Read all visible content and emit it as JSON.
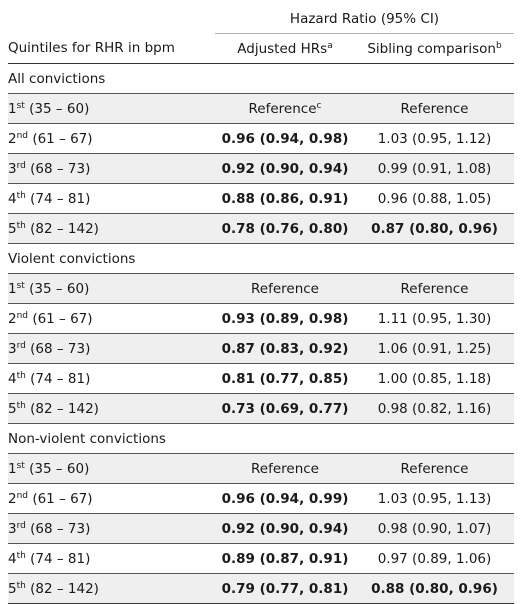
{
  "header": {
    "span_label": "Hazard Ratio (95% CI)",
    "quintile_label": "Quintiles for RHR in bpm",
    "adjusted_label": "Adjusted HRs",
    "adjusted_sup": "a",
    "sibling_label": "Sibling comparison",
    "sibling_sup": "b"
  },
  "sections": [
    {
      "title": "All convictions",
      "rows": [
        {
          "ord": "1",
          "suffix": "st",
          "range": "(35 – 60)",
          "adj": "Reference",
          "adj_sup": "c",
          "adj_bold": false,
          "sib": "Reference",
          "sib_bold": false
        },
        {
          "ord": "2",
          "suffix": "nd",
          "range": "(61 – 67)",
          "adj": "0.96 (0.94, 0.98)",
          "adj_sup": "",
          "adj_bold": true,
          "sib": "1.03 (0.95, 1.12)",
          "sib_bold": false
        },
        {
          "ord": "3",
          "suffix": "rd",
          "range": "(68 – 73)",
          "adj": "0.92 (0.90, 0.94)",
          "adj_sup": "",
          "adj_bold": true,
          "sib": "0.99 (0.91, 1.08)",
          "sib_bold": false
        },
        {
          "ord": "4",
          "suffix": "th",
          "range": "(74 – 81)",
          "adj": "0.88 (0.86, 0.91)",
          "adj_sup": "",
          "adj_bold": true,
          "sib": "0.96 (0.88, 1.05)",
          "sib_bold": false
        },
        {
          "ord": "5",
          "suffix": "th",
          "range": "(82 – 142)",
          "adj": "0.78 (0.76, 0.80)",
          "adj_sup": "",
          "adj_bold": true,
          "sib": "0.87 (0.80, 0.96)",
          "sib_bold": true
        }
      ]
    },
    {
      "title": "Violent convictions",
      "rows": [
        {
          "ord": "1",
          "suffix": "st",
          "range": "(35 – 60)",
          "adj": "Reference",
          "adj_sup": "",
          "adj_bold": false,
          "sib": "Reference",
          "sib_bold": false
        },
        {
          "ord": "2",
          "suffix": "nd",
          "range": "(61 – 67)",
          "adj": "0.93 (0.89, 0.98)",
          "adj_sup": "",
          "adj_bold": true,
          "sib": "1.11 (0.95, 1.30)",
          "sib_bold": false
        },
        {
          "ord": "3",
          "suffix": "rd",
          "range": "(68 – 73)",
          "adj": "0.87 (0.83, 0.92)",
          "adj_sup": "",
          "adj_bold": true,
          "sib": "1.06 (0.91, 1.25)",
          "sib_bold": false
        },
        {
          "ord": "4",
          "suffix": "th",
          "range": "(74 – 81)",
          "adj": "0.81 (0.77, 0.85)",
          "adj_sup": "",
          "adj_bold": true,
          "sib": "1.00 (0.85, 1.18)",
          "sib_bold": false
        },
        {
          "ord": "5",
          "suffix": "th",
          "range": "(82 – 142)",
          "adj": "0.73 (0.69, 0.77)",
          "adj_sup": "",
          "adj_bold": true,
          "sib": "0.98 (0.82, 1.16)",
          "sib_bold": false
        }
      ]
    },
    {
      "title": "Non-violent convictions",
      "rows": [
        {
          "ord": "1",
          "suffix": "st",
          "range": "(35 – 60)",
          "adj": "Reference",
          "adj_sup": "",
          "adj_bold": false,
          "sib": "Reference",
          "sib_bold": false
        },
        {
          "ord": "2",
          "suffix": "nd",
          "range": "(61 – 67)",
          "adj": "0.96 (0.94, 0.99)",
          "adj_sup": "",
          "adj_bold": true,
          "sib": "1.03 (0.95, 1.13)",
          "sib_bold": false
        },
        {
          "ord": "3",
          "suffix": "rd",
          "range": "(68 – 73)",
          "adj": "0.92 (0.90, 0.94)",
          "adj_sup": "",
          "adj_bold": true,
          "sib": "0.98 (0.90, 1.07)",
          "sib_bold": false
        },
        {
          "ord": "4",
          "suffix": "th",
          "range": "(74 – 81)",
          "adj": "0.89 (0.87, 0.91)",
          "adj_sup": "",
          "adj_bold": true,
          "sib": "0.97 (0.89, 1.06)",
          "sib_bold": false
        },
        {
          "ord": "5",
          "suffix": "th",
          "range": "(82 – 142)",
          "adj": "0.79 (0.77, 0.81)",
          "adj_sup": "",
          "adj_bold": true,
          "sib": "0.88 (0.80, 0.96)",
          "sib_bold": true
        }
      ]
    }
  ]
}
